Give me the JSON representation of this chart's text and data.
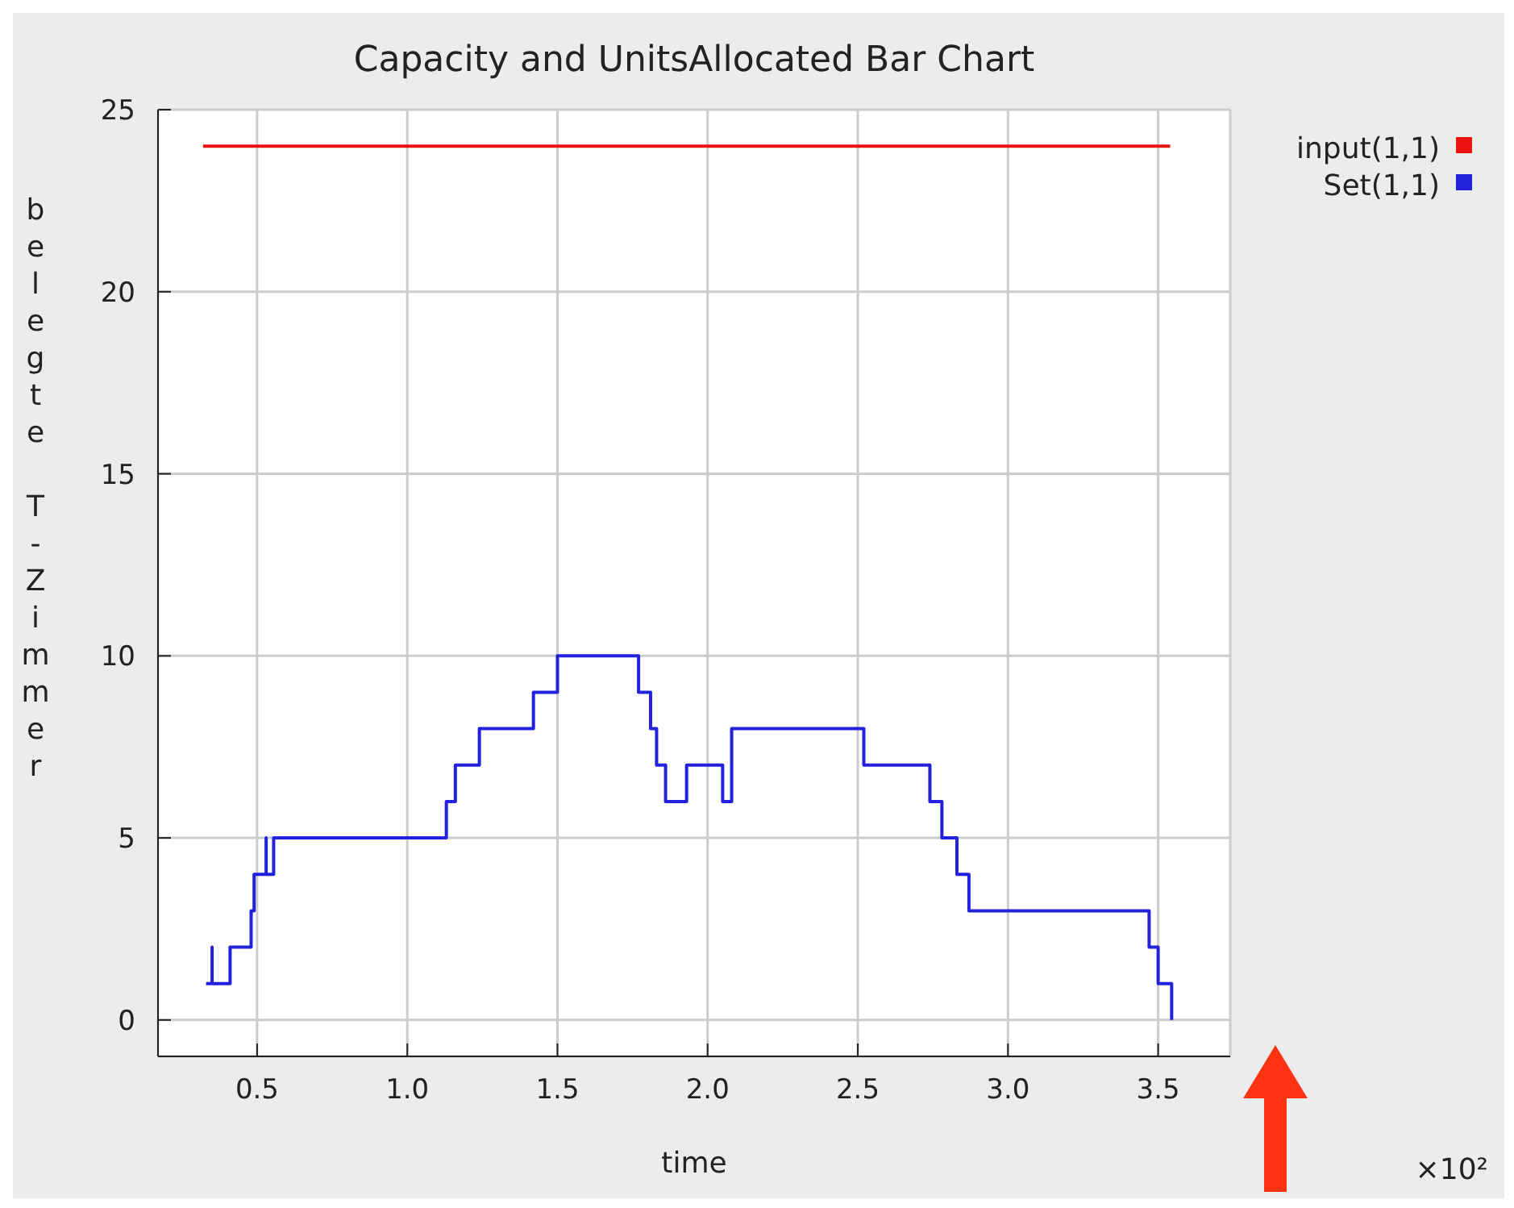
{
  "chart_data": {
    "type": "step",
    "title": "Capacity and UnitsAllocated Bar Chart",
    "xlabel": "time",
    "ylabel": "belegte T-Zimmer",
    "annotations": [
      "×10²"
    ],
    "xlim": [
      0.17,
      3.74
    ],
    "xticks": [
      0.5,
      {
        "value": 1,
        "label": "1.0"
      },
      1.5,
      {
        "value": 2,
        "label": "2.0"
      },
      2.5,
      {
        "value": 3,
        "label": "3.0"
      },
      3.5
    ],
    "ylim": [
      -1,
      25
    ],
    "yticks": [
      0,
      5,
      10,
      15,
      20,
      25
    ],
    "grid": true,
    "legend": "top right",
    "series": [
      {
        "name": "input(1,1)",
        "color": "#ee1111",
        "x": [
          0.32,
          3.54
        ],
        "values": [
          24,
          24
        ]
      },
      {
        "name": "Set(1,1)",
        "color": "#2222dd",
        "x": [
          0.33,
          0.35,
          0.35,
          0.41,
          0.48,
          0.49,
          0.53,
          0.53,
          0.555,
          1.13,
          1.16,
          1.24,
          1.42,
          1.5,
          1.77,
          1.81,
          1.83,
          1.86,
          1.93,
          2.05,
          2.08,
          2.52,
          2.74,
          2.78,
          2.83,
          2.87,
          3.47,
          3.5,
          3.545,
          3.545
        ],
        "values": [
          1,
          2,
          1,
          2,
          3,
          4,
          5,
          4,
          5,
          6,
          7,
          8,
          9,
          10,
          9,
          8,
          7,
          6,
          7,
          6,
          8,
          7,
          6,
          5,
          4,
          3,
          2,
          1,
          0,
          0
        ]
      }
    ]
  }
}
